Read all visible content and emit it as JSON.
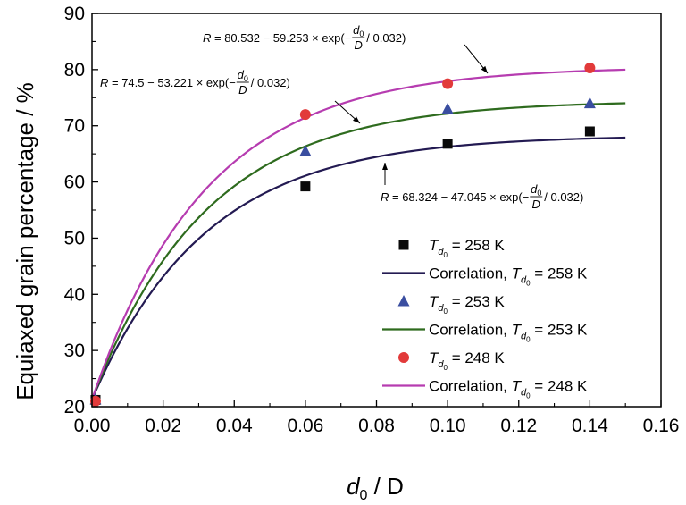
{
  "chart_data": {
    "type": "line",
    "xlabel": "d0 / D",
    "xlabel_var": "d",
    "xlabel_sub": "0",
    "xlabel_rest": " / D",
    "ylabel": "Equiaxed grain percentage / %",
    "xlim": [
      0,
      0.16
    ],
    "ylim": [
      20,
      90
    ],
    "x_ticks": [
      "0.00",
      "0.02",
      "0.04",
      "0.06",
      "0.08",
      "0.10",
      "0.12",
      "0.14",
      "0.16"
    ],
    "y_ticks": [
      "20",
      "30",
      "40",
      "50",
      "60",
      "70",
      "80",
      "90"
    ],
    "series": [
      {
        "name": "Td0 = 258 K",
        "legend_marker_label": {
          "T": "T",
          "sub": "d",
          "subsub": "0",
          "rest": " = 258 K"
        },
        "legend_line_label": {
          "prefix": "Correlation, ",
          "T": "T",
          "sub": "d",
          "subsub": "0",
          "rest": " = 258 K"
        },
        "marker": "square",
        "color": "#0a0a0a",
        "line_color": "#231a52",
        "points_x": [
          0.001,
          0.06,
          0.1,
          0.14
        ],
        "points_y": [
          21.2,
          59.2,
          66.8,
          69.0
        ],
        "fit": {
          "a": 68.324,
          "b": 47.045,
          "c": 0.032
        },
        "equation": {
          "lhs": "R",
          "text1": " = 68.324 − 47.045 × exp(−",
          "num": "d",
          "num_sub": "0",
          "den": "D",
          "text2": " / 0.032)"
        }
      },
      {
        "name": "Td0 = 253 K",
        "legend_marker_label": {
          "T": "T",
          "sub": "d",
          "subsub": "0",
          "rest": " = 253 K"
        },
        "legend_line_label": {
          "prefix": "Correlation, ",
          "T": "T",
          "sub": "d",
          "subsub": "0",
          "rest": " = 253 K"
        },
        "marker": "triangle",
        "color": "#3a4ea0",
        "line_color": "#2e6b1e",
        "points_x": [
          0.001,
          0.06,
          0.1,
          0.14
        ],
        "points_y": [
          21.3,
          65.5,
          73.0,
          74.0
        ],
        "fit": {
          "a": 74.5,
          "b": 53.221,
          "c": 0.032
        },
        "equation": {
          "lhs": "R",
          "text1": " = 74.5 − 53.221 × exp(−",
          "num": "d",
          "num_sub": "0",
          "den": "D",
          "text2": " / 0.032)"
        }
      },
      {
        "name": "Td0 = 248 K",
        "legend_marker_label": {
          "T": "T",
          "sub": "d",
          "subsub": "0",
          "rest": " = 248 K"
        },
        "legend_line_label": {
          "prefix": "Correlation, ",
          "T": "T",
          "sub": "d",
          "subsub": "0",
          "rest": " = 248 K"
        },
        "marker": "circle",
        "color": "#e23a3a",
        "line_color": "#b63cb0",
        "points_x": [
          0.001,
          0.06,
          0.1,
          0.14
        ],
        "points_y": [
          21.0,
          72.0,
          77.5,
          80.3
        ],
        "fit": {
          "a": 80.532,
          "b": 59.253,
          "c": 0.032
        },
        "equation": {
          "lhs": "R",
          "text1": " = 80.532 − 59.253 × exp(−",
          "num": "d",
          "num_sub": "0",
          "den": "D",
          "text2": " / 0.032)"
        }
      }
    ],
    "fit_x_range": [
      0,
      0.15
    ],
    "legend_position": "bottom-right"
  }
}
